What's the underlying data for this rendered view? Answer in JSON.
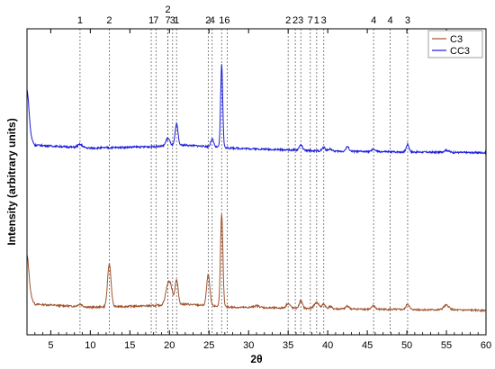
{
  "chart_data": {
    "type": "line",
    "xlabel": "2θ",
    "ylabel": "Intensity (arbitrary units)",
    "xlim": [
      2,
      60
    ],
    "ylim": [
      0,
      100
    ],
    "x_ticks": [
      5,
      10,
      15,
      20,
      25,
      30,
      35,
      40,
      45,
      50,
      55,
      60
    ],
    "grid": false,
    "legend_position": "top-right",
    "reference_lines": [
      {
        "x": 8.7,
        "label": "1"
      },
      {
        "x": 12.4,
        "label": "2"
      },
      {
        "x": 17.7,
        "label": "1"
      },
      {
        "x": 18.3,
        "label": "7"
      },
      {
        "x": 19.8,
        "label": "7"
      },
      {
        "x": 19.8,
        "label": "2"
      },
      {
        "x": 20.4,
        "label": "3"
      },
      {
        "x": 20.9,
        "label": "1"
      },
      {
        "x": 24.9,
        "label": "2"
      },
      {
        "x": 25.4,
        "label": "4"
      },
      {
        "x": 26.6,
        "label": "1"
      },
      {
        "x": 27.3,
        "label": "6"
      },
      {
        "x": 35.0,
        "label": "2"
      },
      {
        "x": 35.9,
        "label": "2"
      },
      {
        "x": 36.6,
        "label": "3"
      },
      {
        "x": 37.8,
        "label": "7"
      },
      {
        "x": 38.6,
        "label": "1"
      },
      {
        "x": 39.5,
        "label": "3"
      },
      {
        "x": 45.8,
        "label": "4"
      },
      {
        "x": 47.9,
        "label": "4"
      },
      {
        "x": 50.1,
        "label": "3"
      }
    ],
    "series": [
      {
        "name": "C3",
        "color": "#a0522d",
        "baseline": 8,
        "background": [
          [
            2,
            14
          ],
          [
            3,
            10
          ],
          [
            10,
            9
          ],
          [
            18,
            9.5
          ],
          [
            22,
            10
          ],
          [
            28,
            9
          ],
          [
            40,
            8.5
          ],
          [
            60,
            8
          ]
        ],
        "peaks": [
          [
            2.0,
            12,
            0.25
          ],
          [
            8.7,
            0.8,
            0.3
          ],
          [
            12.4,
            14,
            0.22
          ],
          [
            19.8,
            6,
            0.3
          ],
          [
            20.2,
            4,
            0.25
          ],
          [
            20.9,
            8,
            0.2
          ],
          [
            24.9,
            10,
            0.2
          ],
          [
            26.6,
            30,
            0.15
          ],
          [
            31.0,
            0.6,
            0.4
          ],
          [
            35.0,
            1.5,
            0.25
          ],
          [
            36.6,
            2.5,
            0.2
          ],
          [
            38.6,
            2.0,
            0.3
          ],
          [
            39.5,
            1.5,
            0.2
          ],
          [
            40.3,
            0.8,
            0.2
          ],
          [
            42.5,
            1.0,
            0.2
          ],
          [
            45.8,
            1.2,
            0.2
          ],
          [
            50.1,
            1.8,
            0.2
          ],
          [
            55.0,
            1.5,
            0.35
          ]
        ]
      },
      {
        "name": "CC3",
        "color": "#1a1adc",
        "baseline": 58,
        "background": [
          [
            2,
            66
          ],
          [
            3,
            62
          ],
          [
            10,
            61
          ],
          [
            18,
            61.5
          ],
          [
            22,
            62
          ],
          [
            28,
            61
          ],
          [
            40,
            60
          ],
          [
            60,
            59.5
          ]
        ],
        "peaks": [
          [
            2.0,
            14,
            0.25
          ],
          [
            8.7,
            1.0,
            0.3
          ],
          [
            19.8,
            2.5,
            0.25
          ],
          [
            20.9,
            7,
            0.18
          ],
          [
            25.4,
            2.5,
            0.18
          ],
          [
            26.6,
            27,
            0.13
          ],
          [
            36.6,
            1.8,
            0.2
          ],
          [
            39.5,
            1.2,
            0.2
          ],
          [
            40.3,
            0.8,
            0.2
          ],
          [
            42.5,
            1.5,
            0.2
          ],
          [
            45.8,
            0.8,
            0.2
          ],
          [
            50.1,
            2.5,
            0.18
          ],
          [
            55.0,
            0.7,
            0.3
          ]
        ]
      }
    ]
  }
}
